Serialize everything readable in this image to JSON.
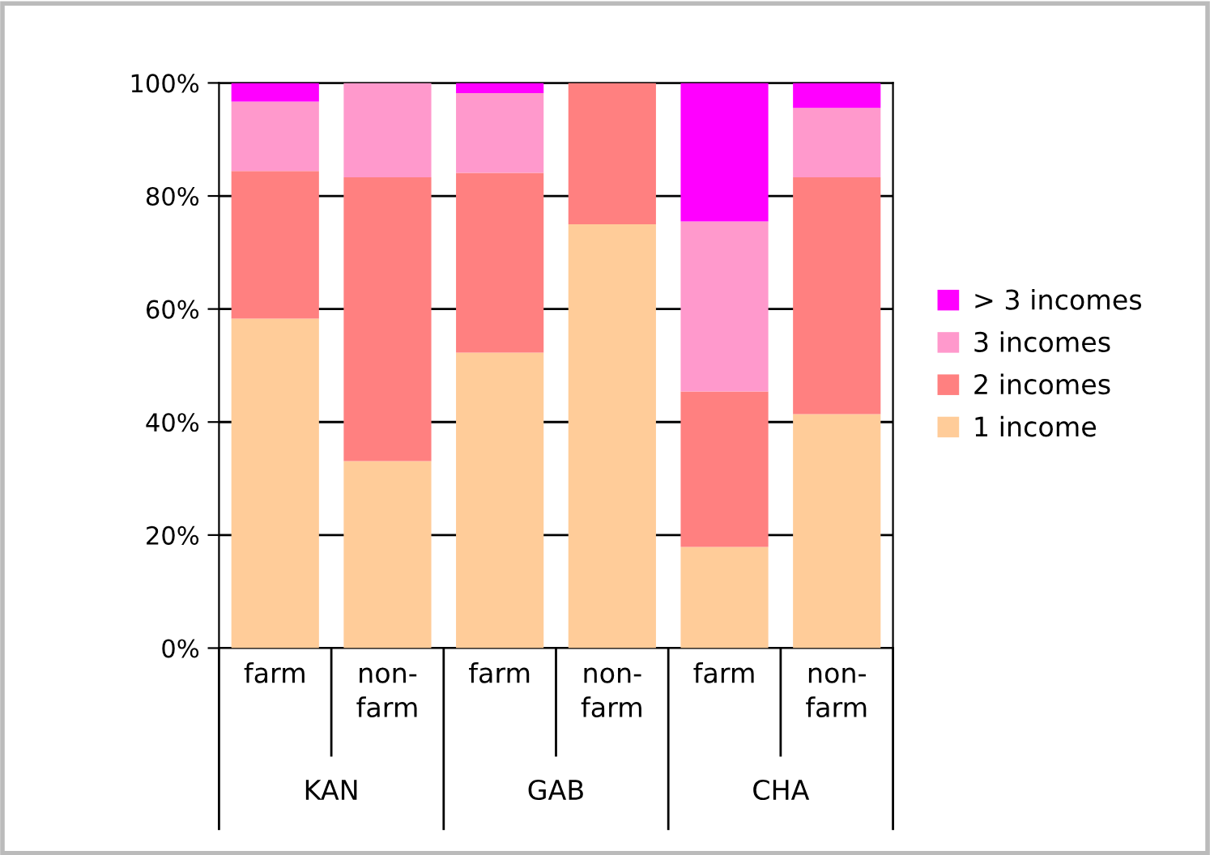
{
  "chart_data": {
    "type": "bar",
    "stacked": true,
    "categories": [
      "farm",
      "non-farm",
      "farm",
      "non-farm",
      "farm",
      "non-farm"
    ],
    "series": [
      {
        "name": "1 income",
        "color": "#ffcc99",
        "values": [
          58.3,
          33.1,
          52.3,
          75.0,
          17.9,
          41.4
        ]
      },
      {
        "name": "2 incomes",
        "color": "#ff8080",
        "values": [
          26.1,
          50.2,
          31.8,
          25.0,
          27.5,
          41.9
        ]
      },
      {
        "name": "3 incomes",
        "color": "#ff99cc",
        "values": [
          12.3,
          16.7,
          14.1,
          0,
          30.1,
          12.3
        ]
      },
      {
        "name": "> 3 incomes",
        "color": "#ff00ff",
        "values": [
          3.3,
          0,
          1.8,
          0,
          24.5,
          4.4
        ]
      }
    ],
    "annotations": [
      "KAN",
      "GAB",
      "CHA"
    ],
    "ylim": [
      0,
      100
    ],
    "yticks": [
      {
        "value": 0,
        "label": "0%"
      },
      {
        "value": 20,
        "label": "20%"
      },
      {
        "value": 40,
        "label": "40%"
      },
      {
        "value": 60,
        "label": "60%"
      },
      {
        "value": 80,
        "label": "80%"
      },
      {
        "value": 100,
        "label": "100%"
      }
    ],
    "grid": "y",
    "legend": "right"
  }
}
